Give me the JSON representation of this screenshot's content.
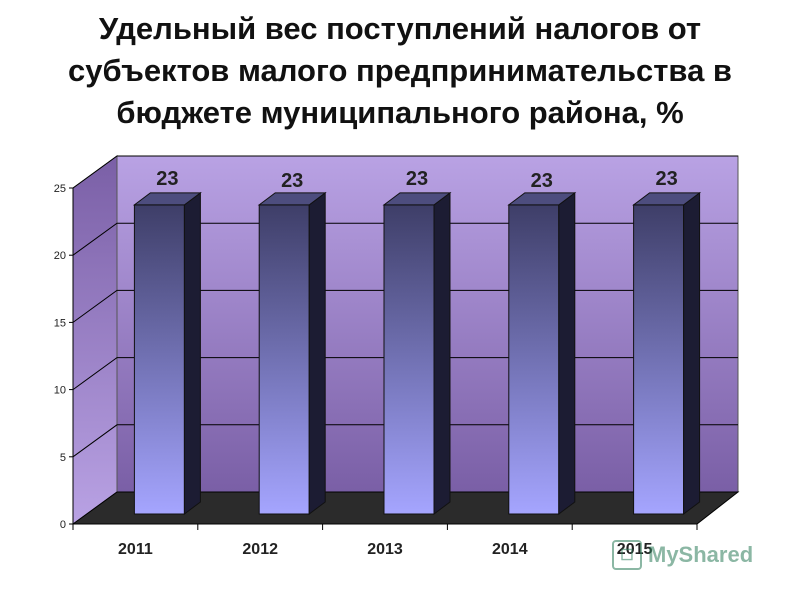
{
  "title": "Удельный вес поступлений налогов от субъектов малого предпринимательства в бюджете муниципального района, %",
  "watermark": "MyShared",
  "colors": {
    "wall_top": "#b9a2e4",
    "wall_bottom": "#7a5fa6",
    "floor": "#2b2b2b",
    "bar_front_top": "#3e3e68",
    "bar_front_bottom": "#a5a5ff",
    "bar_side": "#1c1c33",
    "bar_top": "#4d4d7e"
  },
  "chart_data": {
    "type": "bar",
    "style": "3d",
    "title": "Удельный вес поступлений налогов от субъектов малого предпринимательства в бюджете муниципального района, %",
    "categories": [
      "2011",
      "2012",
      "2013",
      "2014",
      "2015"
    ],
    "values": [
      23,
      23,
      23,
      23,
      23
    ],
    "data_labels": [
      "23",
      "23",
      "23",
      "23",
      "23"
    ],
    "y_ticks": [
      "0",
      "5",
      "10",
      "15",
      "20",
      "25"
    ],
    "ylim": [
      0,
      25
    ],
    "xlabel": "",
    "ylabel": "",
    "grid": true,
    "legend": "none"
  }
}
